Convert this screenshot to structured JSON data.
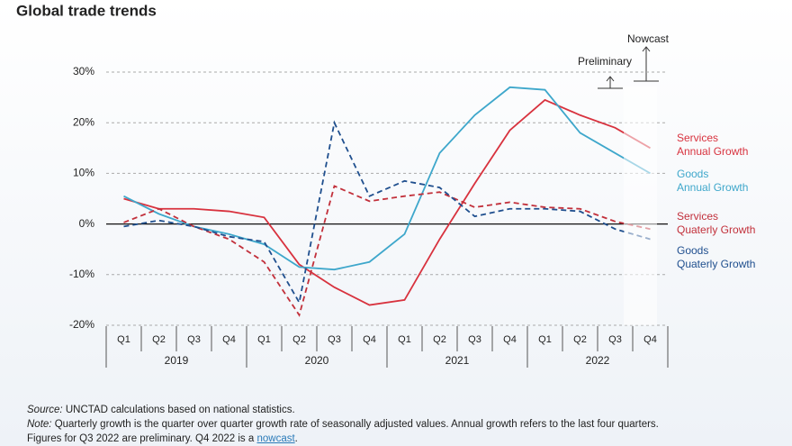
{
  "chart_data": {
    "type": "line",
    "title": "Global trade trends",
    "categories": [
      "Q1",
      "Q2",
      "Q3",
      "Q4",
      "Q1",
      "Q2",
      "Q3",
      "Q4",
      "Q1",
      "Q2",
      "Q3",
      "Q4",
      "Q1",
      "Q2",
      "Q3",
      "Q4"
    ],
    "years": [
      "2019",
      "2020",
      "2021",
      "2022"
    ],
    "series": [
      {
        "name": "Services\nAnnual Growth",
        "color": "#d8323e",
        "dashed": false,
        "values": [
          5,
          3,
          3,
          2.5,
          1.3,
          -8,
          -12.5,
          -16,
          -15,
          -3,
          8,
          18.5,
          24.5,
          21.5,
          19,
          15
        ]
      },
      {
        "name": "Goods\nAnnual Growth",
        "color": "#3ea7cb",
        "dashed": false,
        "values": [
          5.5,
          2,
          -0.5,
          -2,
          -4,
          -8.5,
          -9,
          -7.5,
          -2,
          14,
          21.5,
          27,
          26.5,
          18,
          14,
          10
        ]
      },
      {
        "name": "Services\nQuaterly Growth",
        "color": "#c2303b",
        "dashed": true,
        "values": [
          0.3,
          3,
          -0.5,
          -3,
          -7.5,
          -18,
          7.5,
          4.5,
          5.5,
          6.3,
          3.3,
          4.3,
          3.3,
          3,
          0.5,
          -1
        ]
      },
      {
        "name": "Goods\nQuaterly Growth",
        "color": "#1f4f8e",
        "dashed": true,
        "values": [
          -0.5,
          0.7,
          -0.5,
          -2.5,
          -3.5,
          -15.5,
          20,
          5.5,
          8.5,
          7.2,
          1.5,
          3,
          3,
          2.5,
          -1,
          -3
        ]
      }
    ],
    "ylim": [
      -20,
      30
    ],
    "yticks": [
      {
        "value": -20,
        "label": "-20%"
      },
      {
        "value": -10,
        "label": "-10%"
      },
      {
        "value": 0,
        "label": "0%"
      },
      {
        "value": 10,
        "label": "10%"
      },
      {
        "value": 20,
        "label": "20%"
      },
      {
        "value": 30,
        "label": "30%"
      }
    ],
    "grid": true,
    "legend_position": "right",
    "annotations": {
      "preliminary": "Preliminary",
      "nowcast": "Nowcast"
    }
  },
  "footer": {
    "source_label": "Source:",
    "source_text": " UNCTAD calculations based on national statistics.",
    "note_label": "Note:",
    "note_text": " Quarterly growth is the quarter over quarter growth rate of seasonally adjusted values. Annual growth refers to the last four quarters.",
    "figures_text": "Figures for Q3 2022 are preliminary. Q4 2022 is a ",
    "link": "nowcast",
    "end": "."
  }
}
